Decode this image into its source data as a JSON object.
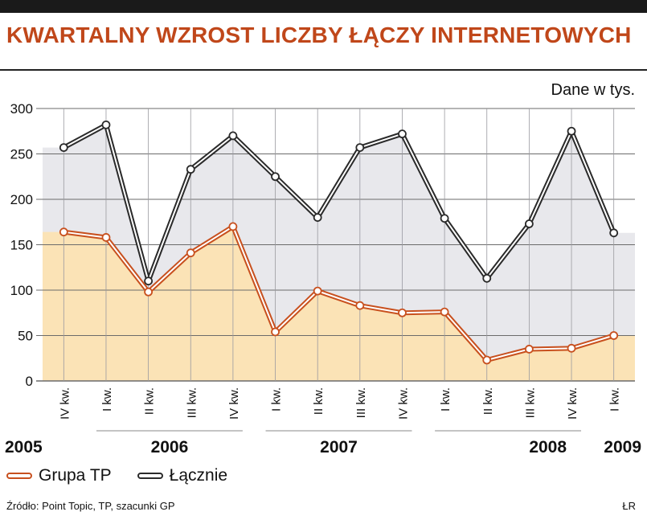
{
  "header": {
    "title": "KWARTALNY WZROST LICZBY ŁĄCZY INTERNETOWYCH",
    "unit_note": "Dane w tys."
  },
  "footer": {
    "source": "Źródło: Point Topic, TP, szacunki GP",
    "credit": "ŁR"
  },
  "legend": {
    "grupa_tp": "Grupa TP",
    "lacznie": "Łącznie"
  },
  "colors": {
    "grupa_tp_line": "#c8501e",
    "grupa_tp_fill": "#fbe3b6",
    "lacznie_line": "#2a2a2a",
    "lacznie_fill": "#e8e8ec",
    "title": "#c0471a"
  },
  "chart_data": {
    "type": "area",
    "title": "KWARTALNY WZROST LICZBY ŁĄCZY INTERNETOWYCH",
    "ylabel": "Dane w tys.",
    "ylim": [
      0,
      300
    ],
    "yticks": [
      0,
      50,
      100,
      150,
      200,
      250,
      300
    ],
    "grid": true,
    "legend_position": "bottom-left",
    "categories": [
      "IV kw.",
      "I kw.",
      "II kw.",
      "III kw.",
      "IV kw.",
      "I kw.",
      "II kw.",
      "III kw.",
      "IV kw.",
      "I kw.",
      "II kw.",
      "III kw.",
      "IV kw.",
      "I kw."
    ],
    "years": [
      {
        "label": "2005",
        "from": 0,
        "to": 0
      },
      {
        "label": "2006",
        "from": 1,
        "to": 4
      },
      {
        "label": "2007",
        "from": 5,
        "to": 8
      },
      {
        "label": "2008",
        "from": 9,
        "to": 12
      },
      {
        "label": "2009",
        "from": 13,
        "to": 13
      }
    ],
    "series": [
      {
        "name": "Łącznie",
        "values": [
          257,
          282,
          110,
          233,
          270,
          225,
          180,
          257,
          272,
          179,
          113,
          173,
          275,
          163
        ]
      },
      {
        "name": "Grupa TP",
        "values": [
          164,
          158,
          98,
          141,
          170,
          54,
          99,
          83,
          75,
          76,
          23,
          35,
          36,
          50
        ]
      }
    ]
  }
}
